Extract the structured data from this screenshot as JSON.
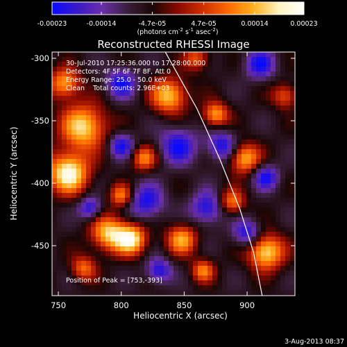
{
  "colors": {
    "background": "#000000",
    "foreground": "#ffffff",
    "colormap": [
      "#0a0aff",
      "#3a19c8",
      "#6a2fa8",
      "#3a1f3a",
      "#1a0606",
      "#8a0a00",
      "#d03000",
      "#ff6a00",
      "#ffb020",
      "#fff3c0",
      "#ffffff"
    ]
  },
  "colorbar": {
    "ticks": [
      "-0.00023",
      "-0.00014",
      "-4.7e-05",
      "4.7e-05",
      "0.00014",
      "0.00023"
    ],
    "tick_values": [
      -0.00023,
      -0.00014,
      -4.7e-05,
      4.7e-05,
      0.00014,
      0.00023
    ],
    "min": -0.00023,
    "max": 0.00023,
    "units_label": "(photons cm",
    "units_exp1": "-2",
    "units_mid": " s",
    "units_exp2": "-1",
    "units_mid2": " asec",
    "units_exp3": "-2",
    "units_end": ")"
  },
  "chart_data": {
    "type": "heatmap",
    "title": "Reconstructed RHESSI Image",
    "xlabel": "Heliocentric X (arcsec)",
    "ylabel": "Heliocentric Y (arcsec)",
    "xlim": [
      745,
      938
    ],
    "ylim": [
      -490,
      -295
    ],
    "xticks": [
      750,
      800,
      850,
      900
    ],
    "yticks": [
      -300,
      -350,
      -400,
      -450
    ],
    "limb_arc": [
      [
        835,
        -295
      ],
      [
        860,
        -340
      ],
      [
        878,
        -380
      ],
      [
        894,
        -420
      ],
      [
        905,
        -455
      ],
      [
        912,
        -490
      ]
    ],
    "annotations": [
      "30-Jul-2010 17:25:36.000 to 17:28:00.000",
      "Detectors: 4F 5F 6F 7F 8F, Att 0",
      "Energy Range: 25.0 - 50.0 keV",
      "Clean    Total counts: 2.96E+03"
    ],
    "peak_label": "Position of Peak = [753,-393]",
    "peak": [
      753,
      -393
    ]
  },
  "footer": {
    "date": "3-Aug-2013 08:37"
  }
}
